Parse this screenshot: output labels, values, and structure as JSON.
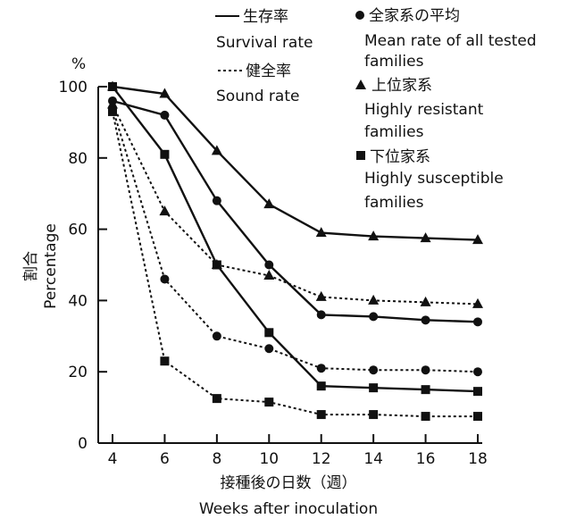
{
  "chart_data": {
    "type": "line",
    "title": "",
    "unit_label": "%",
    "xlabel_jp": "接種後の日数（週）",
    "xlabel_en": "Weeks after inoculation",
    "ylabel_jp": "割合",
    "ylabel_en": "Percentage",
    "x": [
      4,
      6,
      8,
      10,
      12,
      14,
      16,
      18
    ],
    "xlim": [
      4,
      18
    ],
    "ylim": [
      0,
      100
    ],
    "x_ticks": [
      "4",
      "6",
      "8",
      "10",
      "12",
      "14",
      "16",
      "18"
    ],
    "y_ticks": [
      "0",
      "20",
      "40",
      "60",
      "80",
      "100"
    ],
    "grid": false,
    "legend": {
      "position": "top-right",
      "line_styles": [
        {
          "jp": "生存率",
          "en": "Survival rate",
          "style": "solid"
        },
        {
          "jp": "健全率",
          "en": "Sound rate",
          "style": "dashed"
        }
      ],
      "markers": [
        {
          "jp": "全家系の平均",
          "en1": "Mean rate of all tested",
          "en2": "families",
          "marker": "circle"
        },
        {
          "jp": "上位家系",
          "en1": "Highly resistant",
          "en2": "families",
          "marker": "triangle"
        },
        {
          "jp": "下位家系",
          "en1": "Highly susceptible",
          "en2": "families",
          "marker": "square"
        }
      ]
    },
    "series": [
      {
        "group": "resistant",
        "metric": "survival",
        "marker": "triangle",
        "style": "solid",
        "values": [
          100,
          98,
          82,
          67,
          59,
          58,
          57.5,
          57
        ]
      },
      {
        "group": "mean",
        "metric": "survival",
        "marker": "circle",
        "style": "solid",
        "values": [
          96,
          92,
          68,
          50,
          36,
          35.5,
          34.5,
          34
        ]
      },
      {
        "group": "susceptible",
        "metric": "survival",
        "marker": "square",
        "style": "solid",
        "values": [
          100,
          81,
          50,
          31,
          16,
          15.5,
          15,
          14.5
        ]
      },
      {
        "group": "resistant",
        "metric": "sound",
        "marker": "triangle",
        "style": "dashed",
        "values": [
          95,
          65,
          50,
          47,
          41,
          40,
          39.5,
          39
        ]
      },
      {
        "group": "mean",
        "metric": "sound",
        "marker": "circle",
        "style": "dashed",
        "values": [
          94,
          46,
          30,
          26.5,
          21,
          20.5,
          20.5,
          20
        ]
      },
      {
        "group": "susceptible",
        "metric": "sound",
        "marker": "square",
        "style": "dashed",
        "values": [
          93,
          23,
          12.5,
          11.5,
          8,
          8,
          7.5,
          7.5
        ]
      }
    ]
  }
}
